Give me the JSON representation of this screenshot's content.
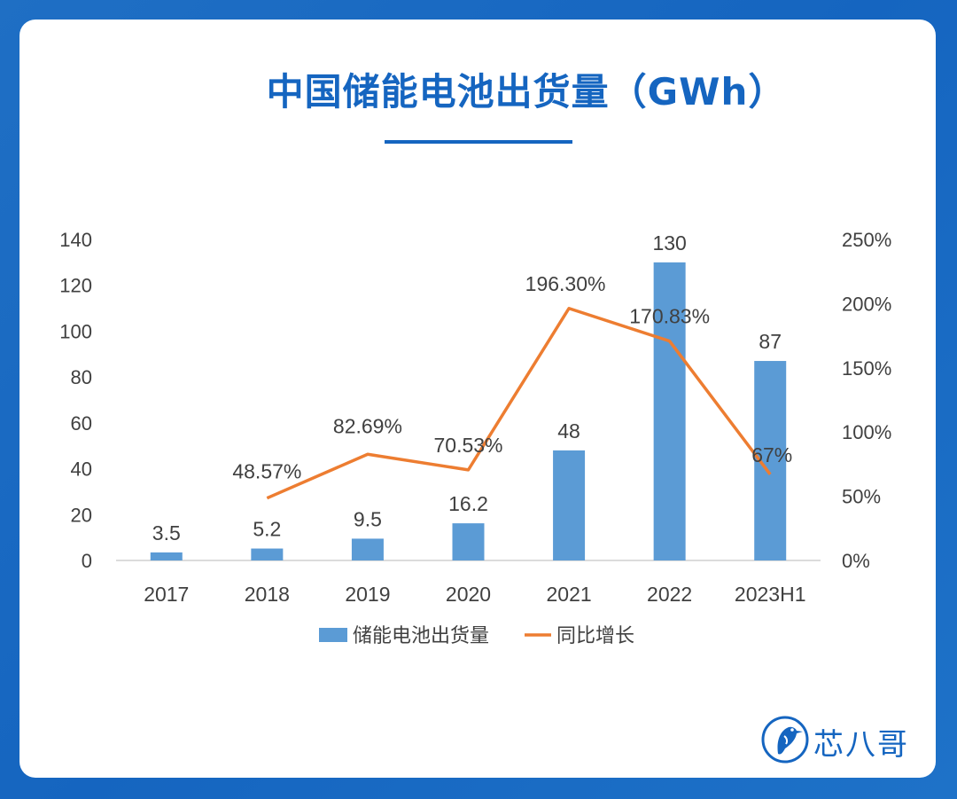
{
  "title": "中国储能电池出货量（GWh）",
  "brand": {
    "name": "芯八哥"
  },
  "colors": {
    "bar": "#5b9bd5",
    "line": "#ed7d31",
    "accent": "#1565c0",
    "text": "#404040",
    "axis": "#d0d0d0"
  },
  "chart_data": {
    "type": "bar+line",
    "categories": [
      "2017",
      "2018",
      "2019",
      "2020",
      "2021",
      "2022",
      "2023H1"
    ],
    "series": [
      {
        "name": "储能电池出货量",
        "type": "bar",
        "axis": "left",
        "values": [
          3.5,
          5.2,
          9.5,
          16.2,
          48,
          130,
          87
        ],
        "labels": [
          "3.5",
          "5.2",
          "9.5",
          "16.2",
          "48",
          "130",
          "87"
        ]
      },
      {
        "name": "同比增长",
        "type": "line",
        "axis": "right",
        "values": [
          null,
          48.57,
          82.69,
          70.53,
          196.3,
          170.83,
          67
        ],
        "labels": [
          "",
          "48.57%",
          "82.69%",
          "70.53%",
          "196.30%",
          "170.83%",
          "67%"
        ]
      }
    ],
    "y_left": {
      "range": [
        0,
        140
      ],
      "ticks": [
        "0",
        "20",
        "40",
        "60",
        "80",
        "100",
        "120",
        "140"
      ]
    },
    "y_right": {
      "range": [
        0,
        250
      ],
      "ticks": [
        "0%",
        "50%",
        "100%",
        "150%",
        "200%",
        "250%"
      ]
    },
    "legend": {
      "position": "bottom",
      "items": [
        "储能电池出货量",
        "同比增长"
      ]
    },
    "grid": false
  }
}
